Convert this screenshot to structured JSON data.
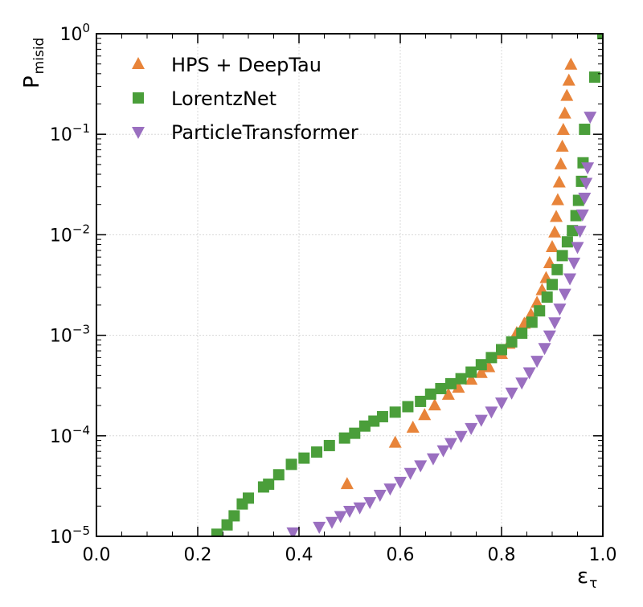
{
  "chart_data": {
    "type": "scatter",
    "xlabel": "ε",
    "xlabel_sub": "τ",
    "ylabel": "P",
    "ylabel_sub": "misid",
    "xlim": [
      0.0,
      1.0
    ],
    "ylim": [
      1e-05,
      1.0
    ],
    "yscale": "log",
    "grid": true,
    "legend_position": "top-left",
    "x_ticks": [
      "0.0",
      "0.2",
      "0.4",
      "0.6",
      "0.8",
      "1.0"
    ],
    "y_ticks": [
      {
        "base": "10",
        "exp": "−5"
      },
      {
        "base": "10",
        "exp": "−4"
      },
      {
        "base": "10",
        "exp": "−3"
      },
      {
        "base": "10",
        "exp": "−2"
      },
      {
        "base": "10",
        "exp": "−1"
      },
      {
        "base": "10",
        "exp": "0"
      }
    ],
    "series": [
      {
        "name": "HPS + DeepTau",
        "marker": "triangle-up",
        "color": "#e8843a",
        "points": [
          [
            0.495,
            3.3e-05
          ],
          [
            0.59,
            8.5e-05
          ],
          [
            0.625,
            0.00012
          ],
          [
            0.648,
            0.00016
          ],
          [
            0.668,
            0.0002
          ],
          [
            0.695,
            0.000255
          ],
          [
            0.715,
            0.0003
          ],
          [
            0.74,
            0.00036
          ],
          [
            0.76,
            0.00042
          ],
          [
            0.775,
            0.00048
          ],
          [
            0.8,
            0.00065
          ],
          [
            0.815,
            0.00082
          ],
          [
            0.83,
            0.00105
          ],
          [
            0.845,
            0.0013
          ],
          [
            0.858,
            0.0016
          ],
          [
            0.87,
            0.0021
          ],
          [
            0.88,
            0.0028
          ],
          [
            0.888,
            0.0037
          ],
          [
            0.895,
            0.0052
          ],
          [
            0.9,
            0.0075
          ],
          [
            0.905,
            0.0105
          ],
          [
            0.908,
            0.015
          ],
          [
            0.911,
            0.022
          ],
          [
            0.914,
            0.033
          ],
          [
            0.917,
            0.05
          ],
          [
            0.92,
            0.075
          ],
          [
            0.922,
            0.11
          ],
          [
            0.925,
            0.16
          ],
          [
            0.929,
            0.24
          ],
          [
            0.933,
            0.34
          ],
          [
            0.937,
            0.49
          ]
        ]
      },
      {
        "name": "LorentzNet",
        "marker": "square",
        "color": "#4a9e3a",
        "points": [
          [
            0.238,
            1.05e-05
          ],
          [
            0.258,
            1.3e-05
          ],
          [
            0.272,
            1.6e-05
          ],
          [
            0.288,
            2.1e-05
          ],
          [
            0.3,
            2.4e-05
          ],
          [
            0.33,
            3.1e-05
          ],
          [
            0.34,
            3.3e-05
          ],
          [
            0.36,
            4.1e-05
          ],
          [
            0.385,
            5.2e-05
          ],
          [
            0.41,
            6e-05
          ],
          [
            0.435,
            6.9e-05
          ],
          [
            0.46,
            8e-05
          ],
          [
            0.49,
            9.5e-05
          ],
          [
            0.51,
            0.000106
          ],
          [
            0.53,
            0.000125
          ],
          [
            0.548,
            0.00014
          ],
          [
            0.565,
            0.000155
          ],
          [
            0.59,
            0.000172
          ],
          [
            0.615,
            0.000195
          ],
          [
            0.64,
            0.00022
          ],
          [
            0.66,
            0.00026
          ],
          [
            0.68,
            0.000295
          ],
          [
            0.7,
            0.00033
          ],
          [
            0.72,
            0.00037
          ],
          [
            0.74,
            0.00043
          ],
          [
            0.76,
            0.00051
          ],
          [
            0.78,
            0.0006
          ],
          [
            0.8,
            0.00072
          ],
          [
            0.82,
            0.00086
          ],
          [
            0.84,
            0.00105
          ],
          [
            0.86,
            0.00135
          ],
          [
            0.875,
            0.00175
          ],
          [
            0.89,
            0.0024
          ],
          [
            0.9,
            0.0032
          ],
          [
            0.91,
            0.0045
          ],
          [
            0.92,
            0.0062
          ],
          [
            0.93,
            0.0085
          ],
          [
            0.94,
            0.011
          ],
          [
            0.947,
            0.0155
          ],
          [
            0.952,
            0.022
          ],
          [
            0.958,
            0.034
          ],
          [
            0.961,
            0.052
          ],
          [
            0.964,
            0.112
          ],
          [
            0.984,
            0.37
          ],
          [
            1.0,
            1.0
          ]
        ]
      },
      {
        "name": "ParticleTransformer",
        "marker": "triangle-down",
        "color": "#9a6fc0",
        "points": [
          [
            0.388,
            1.1e-05
          ],
          [
            0.44,
            1.25e-05
          ],
          [
            0.465,
            1.4e-05
          ],
          [
            0.482,
            1.6e-05
          ],
          [
            0.5,
            1.8e-05
          ],
          [
            0.52,
            1.95e-05
          ],
          [
            0.54,
            2.2e-05
          ],
          [
            0.56,
            2.6e-05
          ],
          [
            0.58,
            3e-05
          ],
          [
            0.6,
            3.5e-05
          ],
          [
            0.62,
            4.3e-05
          ],
          [
            0.64,
            5.1e-05
          ],
          [
            0.665,
            6e-05
          ],
          [
            0.685,
            7.2e-05
          ],
          [
            0.7,
            8.5e-05
          ],
          [
            0.72,
            0.0001
          ],
          [
            0.74,
            0.00012
          ],
          [
            0.76,
            0.000145
          ],
          [
            0.78,
            0.000175
          ],
          [
            0.8,
            0.000215
          ],
          [
            0.82,
            0.00027
          ],
          [
            0.84,
            0.00034
          ],
          [
            0.855,
            0.00043
          ],
          [
            0.87,
            0.00056
          ],
          [
            0.885,
            0.00075
          ],
          [
            0.895,
            0.001
          ],
          [
            0.905,
            0.00135
          ],
          [
            0.915,
            0.00185
          ],
          [
            0.925,
            0.0026
          ],
          [
            0.935,
            0.0037
          ],
          [
            0.943,
            0.0053
          ],
          [
            0.95,
            0.0076
          ],
          [
            0.955,
            0.011
          ],
          [
            0.96,
            0.016
          ],
          [
            0.964,
            0.0235
          ],
          [
            0.967,
            0.033
          ],
          [
            0.97,
            0.047
          ],
          [
            0.975,
            0.15
          ]
        ]
      }
    ]
  }
}
